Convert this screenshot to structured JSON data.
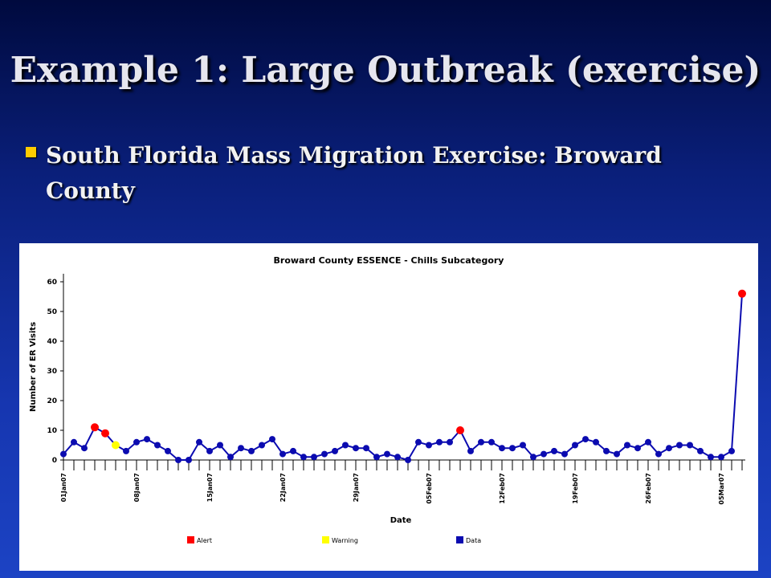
{
  "slide": {
    "title": "Example 1: Large Outbreak (exercise)",
    "bullet": "South Florida Mass Migration Exercise: Broward County"
  },
  "colors": {
    "bullet": "#ffcc00",
    "data": "#0b0bb0",
    "alert": "#ff0000",
    "warning": "#ffff00"
  },
  "chart_data": {
    "type": "line",
    "title": "Broward County ESSENCE - Chills Subcategory",
    "xlabel": "Date",
    "ylabel": "Number of ER Visits",
    "ylim": [
      0,
      60
    ],
    "yticks": [
      "0",
      "10",
      "20",
      "30",
      "40",
      "50",
      "60"
    ],
    "xtick_labels": [
      "01Jan07",
      "08Jan07",
      "15Jan07",
      "22Jan07",
      "29Jan07",
      "05Feb07",
      "12Feb07",
      "19Feb07",
      "26Feb07",
      "05Mar07"
    ],
    "x_start": "01Jan07",
    "x_end": "06Mar07",
    "values": [
      2,
      6,
      4,
      11,
      9,
      5,
      3,
      6,
      7,
      5,
      3,
      0,
      0,
      6,
      3,
      5,
      1,
      4,
      3,
      5,
      7,
      2,
      3,
      1,
      1,
      2,
      3,
      5,
      4,
      4,
      1,
      2,
      1,
      0,
      6,
      5,
      6,
      6,
      10,
      3,
      6,
      6,
      4,
      4,
      5,
      1,
      2,
      3,
      2,
      5,
      7,
      6,
      3,
      2,
      5,
      4,
      6,
      2,
      4,
      5,
      5,
      3,
      1,
      1,
      3,
      56
    ],
    "status": [
      "data",
      "data",
      "data",
      "alert",
      "alert",
      "warning",
      "data",
      "data",
      "data",
      "data",
      "data",
      "data",
      "data",
      "data",
      "data",
      "data",
      "data",
      "data",
      "data",
      "data",
      "data",
      "data",
      "data",
      "data",
      "data",
      "data",
      "data",
      "data",
      "data",
      "data",
      "data",
      "data",
      "data",
      "data",
      "data",
      "data",
      "data",
      "data",
      "alert",
      "data",
      "data",
      "data",
      "data",
      "data",
      "data",
      "data",
      "data",
      "data",
      "data",
      "data",
      "data",
      "data",
      "data",
      "data",
      "data",
      "data",
      "data",
      "data",
      "data",
      "data",
      "data",
      "data",
      "data",
      "data",
      "data",
      "alert"
    ],
    "legend": [
      "Alert",
      "Warning",
      "Data"
    ],
    "legend_placement": "bottom",
    "grid": false
  }
}
